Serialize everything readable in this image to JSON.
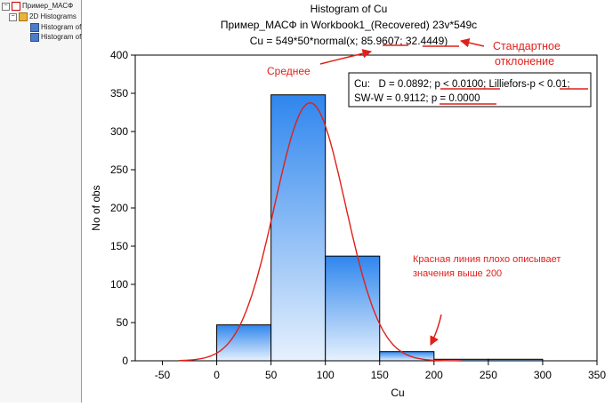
{
  "tree": {
    "root": "Пример_МАСФ",
    "folder": "2D Histograms",
    "items": [
      "Histogram of",
      "Histogram of"
    ]
  },
  "chart_data": {
    "type": "bar",
    "title": "Histogram of Cu",
    "subtitle": "Пример_МАСФ in Workbook1_(Recovered) 23v*549c",
    "formula": "Cu = 549*50*normal(x; 85.9607; 32.4449)",
    "xlabel": "Cu",
    "ylabel": "No of obs",
    "xlim": [
      -75,
      350
    ],
    "ylim": [
      0,
      400
    ],
    "xticks": [
      -50,
      0,
      50,
      100,
      150,
      200,
      250,
      300,
      350
    ],
    "yticks": [
      0,
      50,
      100,
      150,
      200,
      250,
      300,
      350,
      400
    ],
    "bins": [
      {
        "x0": 0,
        "x1": 50,
        "value": 47
      },
      {
        "x0": 50,
        "x1": 100,
        "value": 348
      },
      {
        "x0": 100,
        "x1": 150,
        "value": 137
      },
      {
        "x0": 150,
        "x1": 200,
        "value": 12
      },
      {
        "x0": 200,
        "x1": 250,
        "value": 2
      },
      {
        "x0": 250,
        "x1": 300,
        "value": 2
      }
    ],
    "normal_fit": {
      "n": 549,
      "bin_width": 50,
      "mean": 85.9607,
      "sd": 32.4449
    },
    "stats_lines": [
      "Cu:   D = 0.0892; p < 0.0100; Lilliefors-p < 0.01;",
      "SW-W = 0.9112; p = 0.0000"
    ],
    "grid": false,
    "annotation_color": "#e0201a",
    "annotations": {
      "mean": "Среднее",
      "sd": [
        "Стандартное",
        "отклонение"
      ],
      "note": [
        "Красная линия плохо описывает",
        "значения выше 200"
      ]
    }
  }
}
